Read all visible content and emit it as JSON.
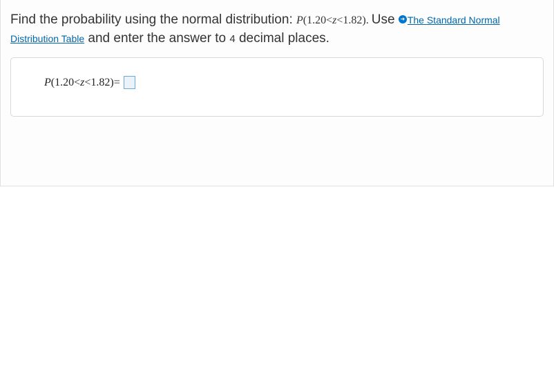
{
  "question": {
    "prefix_text": "Find the probability using the normal distribution: ",
    "math_expr_prefix": "P",
    "math_expr_open": "(",
    "math_lhs": "1.20",
    "math_lt1": "<",
    "math_var": "z",
    "math_lt2": "<",
    "math_rhs": "1.82",
    "math_expr_close": ").",
    "use_text": " Use ",
    "link_text": "The Standard Normal Distribution Table",
    "after_link_1": " and enter the answer to ",
    "decimals": "4",
    "after_link_2": " decimal places."
  },
  "answer": {
    "expr_P": "P",
    "expr_open": "(",
    "expr_lhs": "1.20",
    "expr_lt1": "<",
    "expr_var": "z",
    "expr_lt2": "<",
    "expr_rhs": "1.82",
    "expr_close": ")",
    "expr_eq": " = ",
    "input_value": ""
  },
  "colors": {
    "border": "#e0e0e0",
    "card_border": "#d8d8d8",
    "link": "#0066aa",
    "badge_bg": "#0077cc",
    "input_border": "#6fa8d8",
    "input_bg": "#eaf3fb",
    "text": "#333333",
    "bg": "#ffffff"
  }
}
